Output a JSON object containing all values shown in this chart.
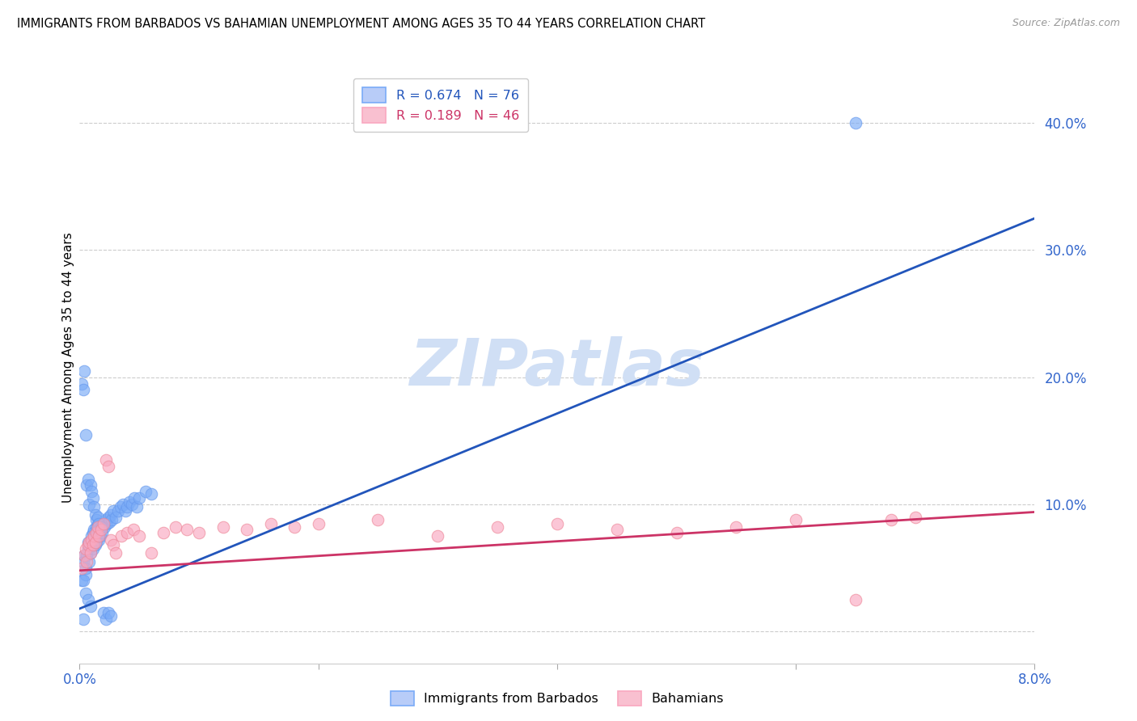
{
  "title": "IMMIGRANTS FROM BARBADOS VS BAHAMIAN UNEMPLOYMENT AMONG AGES 35 TO 44 YEARS CORRELATION CHART",
  "source": "Source: ZipAtlas.com",
  "ylabel": "Unemployment Among Ages 35 to 44 years",
  "xmin": 0.0,
  "xmax": 0.08,
  "ymin": -0.025,
  "ymax": 0.44,
  "yticks": [
    0.0,
    0.1,
    0.2,
    0.3,
    0.4
  ],
  "ytick_labels": [
    "",
    "10.0%",
    "20.0%",
    "30.0%",
    "40.0%"
  ],
  "series1_color": "#7aabf7",
  "series1_edge": "#6699ee",
  "series2_color": "#f9a8c0",
  "series2_edge": "#ee8899",
  "line1_color": "#2255bb",
  "line2_color": "#cc3366",
  "watermark_text": "ZIPatlas",
  "watermark_color": "#d0dff5",
  "R1": 0.674,
  "N1": 76,
  "R2": 0.189,
  "N2": 46,
  "line1_x0": 0.0,
  "line1_y0": 0.018,
  "line1_x1": 0.08,
  "line1_y1": 0.325,
  "line2_x0": 0.0,
  "line2_y0": 0.048,
  "line2_x1": 0.08,
  "line2_y1": 0.094,
  "blue_x": [
    0.0002,
    0.0003,
    0.0004,
    0.0005,
    0.0005,
    0.0006,
    0.0007,
    0.0007,
    0.0008,
    0.0008,
    0.0009,
    0.001,
    0.001,
    0.0011,
    0.0011,
    0.0012,
    0.0012,
    0.0013,
    0.0013,
    0.0014,
    0.0014,
    0.0015,
    0.0015,
    0.0016,
    0.0016,
    0.0017,
    0.0018,
    0.0019,
    0.002,
    0.0021,
    0.0022,
    0.0023,
    0.0024,
    0.0025,
    0.0026,
    0.0027,
    0.0028,
    0.003,
    0.0032,
    0.0034,
    0.0036,
    0.0038,
    0.004,
    0.0042,
    0.0044,
    0.0046,
    0.0048,
    0.005,
    0.0055,
    0.006,
    0.0002,
    0.0003,
    0.0004,
    0.0005,
    0.0006,
    0.0007,
    0.0008,
    0.0009,
    0.001,
    0.0011,
    0.0012,
    0.0013,
    0.0014,
    0.0015,
    0.0016,
    0.0018,
    0.002,
    0.0022,
    0.0024,
    0.0026,
    0.0003,
    0.0005,
    0.0007,
    0.0009,
    0.065,
    0.0003
  ],
  "blue_y": [
    0.04,
    0.055,
    0.06,
    0.045,
    0.05,
    0.06,
    0.065,
    0.07,
    0.055,
    0.068,
    0.062,
    0.07,
    0.075,
    0.065,
    0.078,
    0.072,
    0.08,
    0.068,
    0.075,
    0.082,
    0.07,
    0.076,
    0.085,
    0.072,
    0.08,
    0.075,
    0.083,
    0.078,
    0.085,
    0.082,
    0.088,
    0.085,
    0.09,
    0.086,
    0.092,
    0.088,
    0.095,
    0.09,
    0.095,
    0.098,
    0.1,
    0.095,
    0.098,
    0.102,
    0.1,
    0.105,
    0.098,
    0.105,
    0.11,
    0.108,
    0.195,
    0.19,
    0.205,
    0.155,
    0.115,
    0.12,
    0.1,
    0.115,
    0.11,
    0.105,
    0.098,
    0.092,
    0.088,
    0.09,
    0.085,
    0.082,
    0.015,
    0.01,
    0.015,
    0.012,
    0.04,
    0.03,
    0.025,
    0.02,
    0.4,
    0.01
  ],
  "pink_x": [
    0.0002,
    0.0004,
    0.0005,
    0.0006,
    0.0007,
    0.0008,
    0.0009,
    0.001,
    0.0011,
    0.0012,
    0.0013,
    0.0014,
    0.0015,
    0.0016,
    0.0018,
    0.002,
    0.0022,
    0.0024,
    0.0026,
    0.0028,
    0.003,
    0.0035,
    0.004,
    0.0045,
    0.005,
    0.006,
    0.007,
    0.008,
    0.009,
    0.01,
    0.012,
    0.014,
    0.016,
    0.018,
    0.02,
    0.025,
    0.03,
    0.035,
    0.04,
    0.045,
    0.05,
    0.055,
    0.06,
    0.065,
    0.07,
    0.068
  ],
  "pink_y": [
    0.05,
    0.06,
    0.065,
    0.055,
    0.068,
    0.07,
    0.062,
    0.072,
    0.068,
    0.075,
    0.07,
    0.078,
    0.082,
    0.075,
    0.08,
    0.085,
    0.135,
    0.13,
    0.072,
    0.068,
    0.062,
    0.075,
    0.078,
    0.08,
    0.075,
    0.062,
    0.078,
    0.082,
    0.08,
    0.078,
    0.082,
    0.08,
    0.085,
    0.082,
    0.085,
    0.088,
    0.075,
    0.082,
    0.085,
    0.08,
    0.078,
    0.082,
    0.088,
    0.025,
    0.09,
    0.088
  ]
}
